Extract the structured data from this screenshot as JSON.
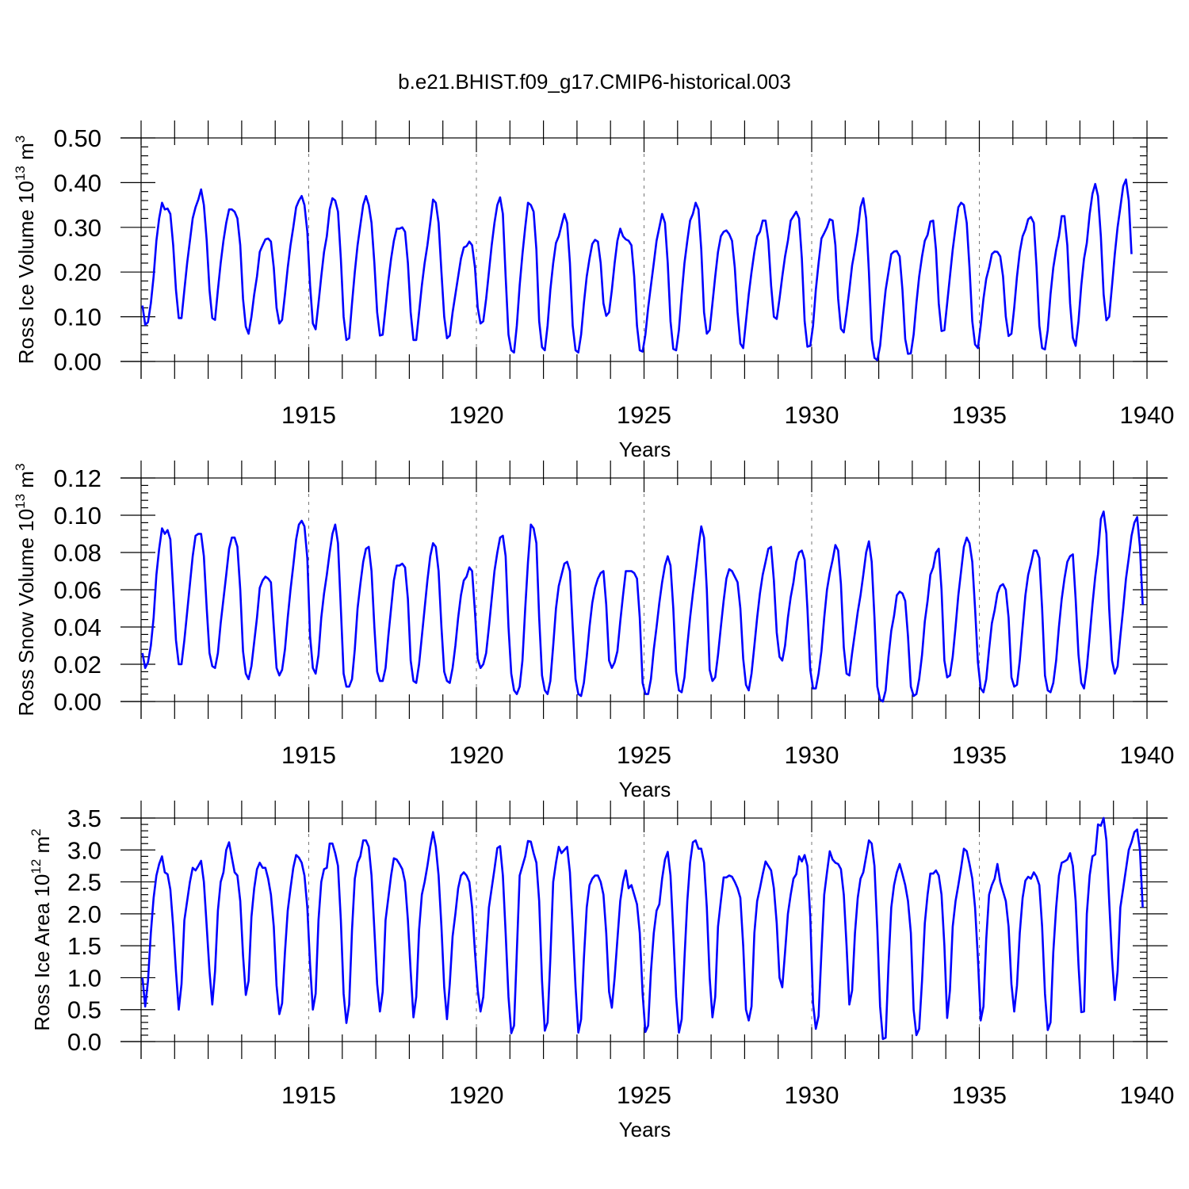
{
  "title": "b.e21.BHIST.f09_g17.CMIP6-historical.003",
  "colors": {
    "series": "#0000ff",
    "axis": "#000000",
    "grid": "#777777"
  },
  "chart_data": [
    {
      "type": "line",
      "name": "ross-ice-volume",
      "ylabel": {
        "prefix": "Ross Ice Volume 10",
        "exp": "13",
        "unit": " m",
        "unit_exp": "3"
      },
      "xlabel": "Years",
      "xlim": [
        1910.0,
        1940.0
      ],
      "ylim": [
        0.0,
        0.5
      ],
      "xticks": [
        1915,
        1920,
        1925,
        1930,
        1935,
        1940
      ],
      "xtick_labels": [
        "1915",
        "1920",
        "1925",
        "1930",
        "1935",
        "1940"
      ],
      "yticks": [
        0.0,
        0.1,
        0.2,
        0.3,
        0.4,
        0.5
      ],
      "ytick_labels": [
        "0.00",
        "0.10",
        "0.20",
        "0.30",
        "0.40",
        "0.50"
      ],
      "grid_x": [
        1915,
        1920,
        1925,
        1930,
        1935
      ],
      "x_start": 1910.04,
      "x_step": 0.0833333,
      "values": [
        0.125,
        0.082,
        0.088,
        0.13,
        0.19,
        0.27,
        0.32,
        0.355,
        0.34,
        0.342,
        0.33,
        0.26,
        0.16,
        0.097,
        0.097,
        0.16,
        0.22,
        0.27,
        0.32,
        0.345,
        0.362,
        0.385,
        0.35,
        0.27,
        0.16,
        0.097,
        0.093,
        0.16,
        0.22,
        0.27,
        0.31,
        0.34,
        0.34,
        0.335,
        0.32,
        0.26,
        0.14,
        0.078,
        0.062,
        0.1,
        0.15,
        0.19,
        0.245,
        0.26,
        0.273,
        0.275,
        0.268,
        0.21,
        0.12,
        0.085,
        0.093,
        0.15,
        0.21,
        0.26,
        0.3,
        0.345,
        0.36,
        0.37,
        0.35,
        0.29,
        0.17,
        0.085,
        0.072,
        0.13,
        0.19,
        0.245,
        0.28,
        0.34,
        0.365,
        0.36,
        0.335,
        0.23,
        0.1,
        0.048,
        0.052,
        0.13,
        0.2,
        0.26,
        0.305,
        0.35,
        0.37,
        0.35,
        0.31,
        0.22,
        0.11,
        0.058,
        0.06,
        0.12,
        0.18,
        0.23,
        0.27,
        0.297,
        0.297,
        0.3,
        0.29,
        0.22,
        0.11,
        0.048,
        0.048,
        0.11,
        0.17,
        0.22,
        0.26,
        0.31,
        0.362,
        0.355,
        0.31,
        0.2,
        0.1,
        0.052,
        0.058,
        0.11,
        0.15,
        0.19,
        0.23,
        0.255,
        0.258,
        0.268,
        0.26,
        0.21,
        0.12,
        0.085,
        0.09,
        0.14,
        0.2,
        0.26,
        0.31,
        0.35,
        0.367,
        0.33,
        0.19,
        0.06,
        0.025,
        0.02,
        0.08,
        0.17,
        0.24,
        0.3,
        0.355,
        0.35,
        0.335,
        0.25,
        0.09,
        0.032,
        0.025,
        0.08,
        0.16,
        0.22,
        0.265,
        0.28,
        0.305,
        0.33,
        0.31,
        0.22,
        0.08,
        0.025,
        0.02,
        0.06,
        0.13,
        0.19,
        0.23,
        0.263,
        0.272,
        0.268,
        0.22,
        0.13,
        0.102,
        0.11,
        0.16,
        0.22,
        0.27,
        0.297,
        0.28,
        0.273,
        0.27,
        0.26,
        0.19,
        0.08,
        0.025,
        0.022,
        0.06,
        0.12,
        0.17,
        0.22,
        0.27,
        0.3,
        0.33,
        0.31,
        0.22,
        0.09,
        0.028,
        0.025,
        0.07,
        0.15,
        0.22,
        0.27,
        0.315,
        0.33,
        0.355,
        0.34,
        0.25,
        0.11,
        0.062,
        0.07,
        0.13,
        0.19,
        0.245,
        0.28,
        0.29,
        0.293,
        0.285,
        0.27,
        0.21,
        0.11,
        0.04,
        0.03,
        0.09,
        0.15,
        0.2,
        0.245,
        0.28,
        0.29,
        0.315,
        0.315,
        0.27,
        0.17,
        0.1,
        0.095,
        0.14,
        0.19,
        0.235,
        0.27,
        0.315,
        0.325,
        0.335,
        0.32,
        0.23,
        0.09,
        0.033,
        0.035,
        0.08,
        0.16,
        0.22,
        0.275,
        0.287,
        0.3,
        0.318,
        0.315,
        0.26,
        0.14,
        0.073,
        0.065,
        0.11,
        0.16,
        0.215,
        0.25,
        0.29,
        0.345,
        0.365,
        0.32,
        0.2,
        0.05,
        0.008,
        0.003,
        0.035,
        0.1,
        0.16,
        0.2,
        0.24,
        0.246,
        0.247,
        0.235,
        0.16,
        0.05,
        0.017,
        0.018,
        0.06,
        0.13,
        0.19,
        0.235,
        0.27,
        0.283,
        0.313,
        0.315,
        0.25,
        0.13,
        0.068,
        0.07,
        0.13,
        0.19,
        0.25,
        0.3,
        0.345,
        0.355,
        0.35,
        0.31,
        0.21,
        0.09,
        0.038,
        0.03,
        0.08,
        0.14,
        0.185,
        0.21,
        0.24,
        0.246,
        0.245,
        0.235,
        0.19,
        0.1,
        0.057,
        0.062,
        0.12,
        0.19,
        0.245,
        0.28,
        0.295,
        0.318,
        0.323,
        0.31,
        0.21,
        0.08,
        0.03,
        0.027,
        0.07,
        0.15,
        0.21,
        0.25,
        0.28,
        0.325,
        0.325,
        0.26,
        0.13,
        0.053,
        0.035,
        0.09,
        0.17,
        0.23,
        0.265,
        0.33,
        0.375,
        0.397,
        0.37,
        0.28,
        0.15,
        0.092,
        0.1,
        0.17,
        0.24,
        0.3,
        0.345,
        0.392,
        0.407,
        0.36,
        0.24
      ]
    },
    {
      "type": "line",
      "name": "ross-snow-volume",
      "ylabel": {
        "prefix": "Ross Snow Volume 10",
        "exp": "13",
        "unit": " m",
        "unit_exp": "3"
      },
      "xlabel": "Years",
      "xlim": [
        1910.0,
        1940.0
      ],
      "ylim": [
        0.0,
        0.12
      ],
      "xticks": [
        1915,
        1920,
        1925,
        1930,
        1935,
        1940
      ],
      "xtick_labels": [
        "1915",
        "1920",
        "1925",
        "1930",
        "1935",
        "1940"
      ],
      "yticks": [
        0.0,
        0.02,
        0.04,
        0.06,
        0.08,
        0.1,
        0.12
      ],
      "ytick_labels": [
        "0.00",
        "0.02",
        "0.04",
        "0.06",
        "0.08",
        "0.10",
        "0.12"
      ],
      "grid_x": [
        1915,
        1920,
        1925,
        1930,
        1935
      ],
      "x_start": 1910.04,
      "x_step": 0.0833333,
      "values": [
        0.026,
        0.018,
        0.021,
        0.03,
        0.045,
        0.068,
        0.082,
        0.093,
        0.09,
        0.092,
        0.087,
        0.06,
        0.033,
        0.02,
        0.02,
        0.033,
        0.048,
        0.063,
        0.078,
        0.089,
        0.09,
        0.09,
        0.078,
        0.05,
        0.026,
        0.019,
        0.018,
        0.026,
        0.042,
        0.055,
        0.068,
        0.082,
        0.088,
        0.088,
        0.083,
        0.06,
        0.027,
        0.015,
        0.012,
        0.019,
        0.032,
        0.045,
        0.061,
        0.065,
        0.067,
        0.066,
        0.064,
        0.04,
        0.018,
        0.014,
        0.017,
        0.028,
        0.045,
        0.06,
        0.073,
        0.087,
        0.095,
        0.097,
        0.094,
        0.077,
        0.035,
        0.018,
        0.015,
        0.025,
        0.045,
        0.058,
        0.068,
        0.08,
        0.09,
        0.095,
        0.085,
        0.05,
        0.015,
        0.008,
        0.008,
        0.012,
        0.028,
        0.05,
        0.063,
        0.075,
        0.082,
        0.083,
        0.07,
        0.04,
        0.016,
        0.011,
        0.011,
        0.018,
        0.035,
        0.05,
        0.065,
        0.073,
        0.073,
        0.074,
        0.072,
        0.055,
        0.022,
        0.011,
        0.01,
        0.02,
        0.035,
        0.05,
        0.065,
        0.078,
        0.085,
        0.083,
        0.07,
        0.04,
        0.016,
        0.011,
        0.01,
        0.018,
        0.03,
        0.045,
        0.057,
        0.065,
        0.067,
        0.072,
        0.07,
        0.048,
        0.023,
        0.018,
        0.02,
        0.026,
        0.04,
        0.055,
        0.07,
        0.08,
        0.088,
        0.089,
        0.078,
        0.04,
        0.015,
        0.006,
        0.004,
        0.008,
        0.022,
        0.05,
        0.075,
        0.095,
        0.093,
        0.085,
        0.045,
        0.014,
        0.006,
        0.004,
        0.011,
        0.03,
        0.05,
        0.062,
        0.068,
        0.074,
        0.075,
        0.07,
        0.04,
        0.012,
        0.004,
        0.003,
        0.01,
        0.024,
        0.04,
        0.053,
        0.061,
        0.066,
        0.069,
        0.07,
        0.052,
        0.022,
        0.018,
        0.021,
        0.027,
        0.043,
        0.057,
        0.07,
        0.07,
        0.07,
        0.069,
        0.066,
        0.045,
        0.01,
        0.004,
        0.004,
        0.012,
        0.028,
        0.04,
        0.053,
        0.064,
        0.073,
        0.078,
        0.073,
        0.05,
        0.016,
        0.006,
        0.005,
        0.013,
        0.03,
        0.045,
        0.058,
        0.07,
        0.083,
        0.094,
        0.088,
        0.06,
        0.017,
        0.011,
        0.013,
        0.025,
        0.04,
        0.054,
        0.066,
        0.071,
        0.07,
        0.067,
        0.064,
        0.05,
        0.023,
        0.009,
        0.006,
        0.015,
        0.03,
        0.045,
        0.058,
        0.068,
        0.075,
        0.082,
        0.083,
        0.065,
        0.037,
        0.024,
        0.022,
        0.03,
        0.045,
        0.056,
        0.064,
        0.075,
        0.08,
        0.081,
        0.076,
        0.05,
        0.017,
        0.007,
        0.007,
        0.015,
        0.027,
        0.045,
        0.06,
        0.069,
        0.076,
        0.084,
        0.081,
        0.063,
        0.029,
        0.015,
        0.014,
        0.026,
        0.037,
        0.048,
        0.057,
        0.068,
        0.08,
        0.086,
        0.075,
        0.045,
        0.008,
        0.001,
        0.0,
        0.006,
        0.024,
        0.038,
        0.046,
        0.057,
        0.059,
        0.058,
        0.054,
        0.035,
        0.008,
        0.003,
        0.004,
        0.012,
        0.025,
        0.043,
        0.054,
        0.068,
        0.072,
        0.08,
        0.082,
        0.06,
        0.022,
        0.013,
        0.014,
        0.024,
        0.04,
        0.057,
        0.07,
        0.083,
        0.088,
        0.085,
        0.075,
        0.05,
        0.021,
        0.007,
        0.005,
        0.012,
        0.028,
        0.042,
        0.049,
        0.058,
        0.062,
        0.063,
        0.06,
        0.045,
        0.013,
        0.008,
        0.009,
        0.022,
        0.04,
        0.057,
        0.068,
        0.074,
        0.081,
        0.081,
        0.077,
        0.05,
        0.014,
        0.006,
        0.005,
        0.01,
        0.022,
        0.04,
        0.055,
        0.066,
        0.075,
        0.078,
        0.079,
        0.055,
        0.025,
        0.01,
        0.007,
        0.018,
        0.035,
        0.052,
        0.067,
        0.079,
        0.098,
        0.102,
        0.09,
        0.05,
        0.022,
        0.015,
        0.019,
        0.035,
        0.05,
        0.066,
        0.077,
        0.089,
        0.096,
        0.099,
        0.083,
        0.052
      ]
    },
    {
      "type": "line",
      "name": "ross-ice-area",
      "ylabel": {
        "prefix": "Ross Ice Area 10",
        "exp": "12",
        "unit": " m",
        "unit_exp": "2"
      },
      "xlabel": "Years",
      "xlim": [
        1910.0,
        1940.0
      ],
      "ylim": [
        0.0,
        3.5
      ],
      "xticks": [
        1915,
        1920,
        1925,
        1930,
        1935,
        1940
      ],
      "xtick_labels": [
        "1915",
        "1920",
        "1925",
        "1930",
        "1935",
        "1940"
      ],
      "yticks": [
        0.0,
        0.5,
        1.0,
        1.5,
        2.0,
        2.5,
        3.0,
        3.5
      ],
      "ytick_labels": [
        "0.0",
        "0.5",
        "1.0",
        "1.5",
        "2.0",
        "2.5",
        "3.0",
        "3.5"
      ],
      "grid_x": [
        1915,
        1920,
        1925,
        1930,
        1935
      ],
      "x_start": 1910.04,
      "x_step": 0.0833333,
      "values": [
        1.0,
        0.55,
        0.95,
        1.7,
        2.25,
        2.6,
        2.78,
        2.9,
        2.65,
        2.62,
        2.38,
        1.8,
        1.1,
        0.5,
        0.9,
        1.9,
        2.2,
        2.5,
        2.72,
        2.68,
        2.75,
        2.83,
        2.5,
        1.8,
        1.1,
        0.58,
        1.1,
        2.05,
        2.5,
        2.65,
        3.0,
        3.12,
        2.88,
        2.65,
        2.6,
        2.2,
        1.35,
        0.73,
        0.95,
        1.95,
        2.4,
        2.7,
        2.8,
        2.72,
        2.72,
        2.55,
        2.3,
        1.8,
        0.88,
        0.43,
        0.6,
        1.4,
        2.05,
        2.4,
        2.72,
        2.92,
        2.88,
        2.8,
        2.6,
        2.1,
        1.2,
        0.5,
        0.75,
        1.9,
        2.5,
        2.7,
        2.72,
        3.1,
        3.1,
        2.95,
        2.75,
        1.9,
        0.75,
        0.29,
        0.58,
        1.75,
        2.55,
        2.8,
        2.9,
        3.15,
        3.15,
        3.05,
        2.6,
        1.75,
        0.9,
        0.47,
        0.78,
        1.9,
        2.25,
        2.6,
        2.87,
        2.85,
        2.78,
        2.7,
        2.5,
        1.9,
        1.1,
        0.38,
        0.7,
        1.75,
        2.3,
        2.5,
        2.75,
        3.05,
        3.28,
        3.05,
        2.6,
        1.8,
        0.85,
        0.35,
        0.9,
        1.65,
        2.0,
        2.4,
        2.6,
        2.65,
        2.6,
        2.5,
        2.1,
        1.4,
        0.8,
        0.47,
        0.7,
        1.4,
        2.1,
        2.4,
        2.7,
        3.03,
        3.06,
        2.6,
        1.7,
        0.7,
        0.13,
        0.25,
        1.4,
        2.6,
        2.75,
        2.9,
        3.14,
        3.13,
        2.95,
        2.8,
        2.2,
        0.95,
        0.17,
        0.3,
        1.3,
        2.5,
        2.8,
        3.05,
        2.95,
        3.0,
        3.05,
        2.65,
        1.8,
        0.85,
        0.14,
        0.35,
        1.3,
        2.1,
        2.45,
        2.55,
        2.6,
        2.6,
        2.5,
        2.3,
        1.7,
        0.78,
        0.53,
        1.0,
        1.6,
        2.2,
        2.5,
        2.68,
        2.4,
        2.45,
        2.3,
        2.15,
        1.7,
        0.75,
        0.15,
        0.25,
        1.1,
        1.7,
        2.05,
        2.15,
        2.55,
        2.85,
        2.97,
        2.6,
        1.7,
        0.7,
        0.14,
        0.35,
        1.3,
        2.2,
        2.8,
        3.12,
        3.15,
        3.02,
        3.02,
        2.8,
        2.1,
        1.0,
        0.38,
        0.7,
        1.8,
        2.2,
        2.57,
        2.57,
        2.6,
        2.58,
        2.5,
        2.4,
        2.25,
        1.5,
        0.5,
        0.33,
        0.55,
        1.7,
        2.2,
        2.4,
        2.62,
        2.82,
        2.75,
        2.68,
        2.4,
        1.85,
        1.0,
        0.85,
        1.4,
        2.0,
        2.3,
        2.55,
        2.62,
        2.9,
        2.82,
        2.92,
        2.75,
        1.95,
        0.6,
        0.2,
        0.4,
        1.4,
        2.3,
        2.65,
        2.98,
        2.85,
        2.8,
        2.78,
        2.7,
        2.3,
        1.5,
        0.58,
        0.8,
        1.7,
        2.25,
        2.55,
        2.65,
        2.9,
        3.15,
        3.1,
        2.75,
        1.75,
        0.55,
        0.04,
        0.06,
        1.2,
        2.1,
        2.45,
        2.65,
        2.78,
        2.62,
        2.45,
        2.2,
        1.7,
        0.5,
        0.1,
        0.2,
        0.95,
        1.85,
        2.3,
        2.63,
        2.63,
        2.68,
        2.6,
        2.3,
        1.5,
        0.37,
        0.8,
        1.8,
        2.2,
        2.45,
        2.72,
        3.02,
        2.98,
        2.78,
        2.55,
        2.1,
        1.3,
        0.33,
        0.55,
        1.6,
        2.3,
        2.45,
        2.55,
        2.78,
        2.5,
        2.35,
        2.2,
        1.8,
        0.9,
        0.47,
        0.88,
        1.7,
        2.25,
        2.52,
        2.58,
        2.55,
        2.65,
        2.58,
        2.45,
        1.8,
        0.75,
        0.18,
        0.3,
        1.4,
        2.1,
        2.6,
        2.8,
        2.82,
        2.85,
        2.95,
        2.75,
        2.2,
        1.2,
        0.46,
        0.47,
        2.0,
        2.6,
        2.9,
        2.93,
        3.4,
        3.38,
        3.5,
        3.15,
        2.2,
        1.3,
        0.65,
        1.1,
        2.1,
        2.4,
        2.7,
        3.0,
        3.12,
        3.28,
        3.32,
        3.0,
        2.1
      ]
    }
  ]
}
